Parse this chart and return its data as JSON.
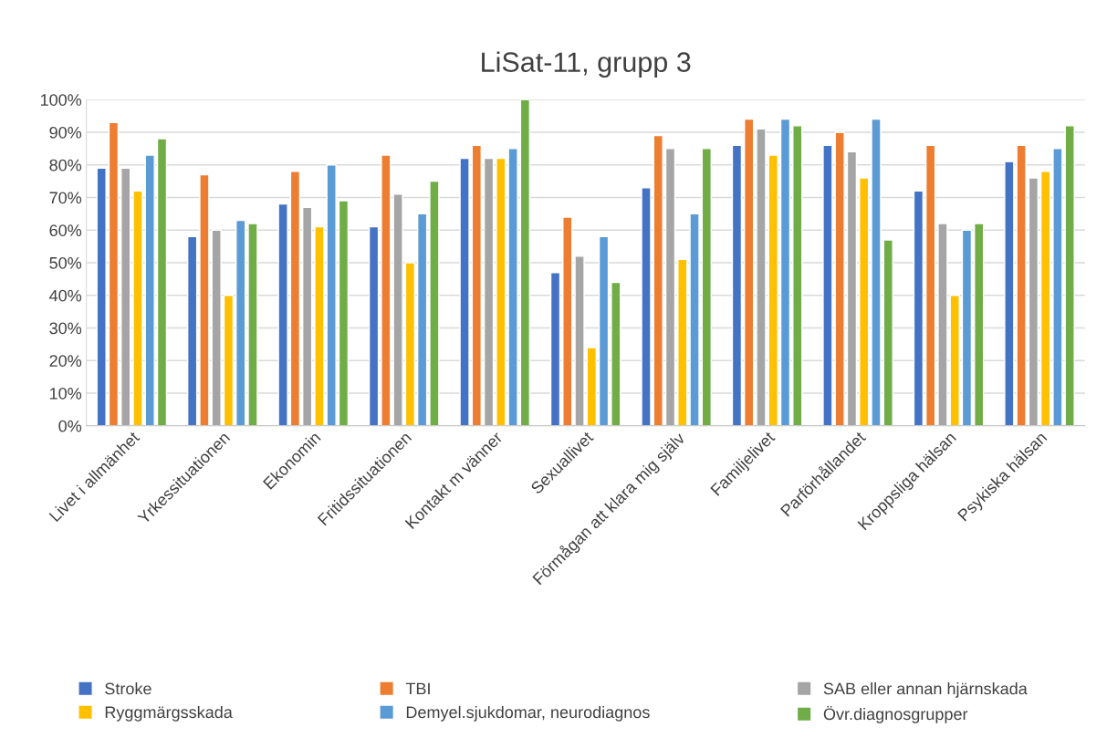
{
  "chart_data": {
    "type": "bar",
    "title": "LiSat-11, grupp 3",
    "categories": [
      "Livet i allmänhet",
      "Yrkessituationen",
      "Ekonomin",
      "Fritidssituationen",
      "Kontakt m vänner",
      "Sexuallivet",
      "Förmågan att klara mig själv",
      "Familjelivet",
      "Parförhållandet",
      "Kroppsliga hälsan",
      "Psykiska hälsan"
    ],
    "series": [
      {
        "name": "Stroke",
        "color": "#4472c4",
        "values": [
          79,
          58,
          68,
          61,
          82,
          47,
          73,
          86,
          86,
          72,
          81
        ]
      },
      {
        "name": "TBI",
        "color": "#ed7d31",
        "values": [
          93,
          77,
          78,
          83,
          86,
          64,
          89,
          94,
          90,
          86,
          86
        ]
      },
      {
        "name": "SAB eller annan hjärnskada",
        "color": "#a5a5a5",
        "values": [
          79,
          60,
          67,
          71,
          82,
          52,
          85,
          91,
          84,
          62,
          76
        ]
      },
      {
        "name": "Ryggmärgsskada",
        "color": "#ffc000",
        "values": [
          72,
          40,
          61,
          50,
          82,
          24,
          51,
          83,
          76,
          40,
          78
        ]
      },
      {
        "name": "Demyel.sjukdomar, neurodiagnos",
        "color": "#5b9bd5",
        "values": [
          83,
          63,
          80,
          65,
          85,
          58,
          65,
          94,
          94,
          60,
          85
        ]
      },
      {
        "name": "Övr.diagnosgrupper",
        "color": "#70ad47",
        "values": [
          88,
          62,
          69,
          75,
          100,
          44,
          85,
          92,
          57,
          62,
          92
        ]
      }
    ],
    "ylim": [
      0,
      100
    ],
    "yticks": [
      {
        "value": 0,
        "label": "0%"
      },
      {
        "value": 10,
        "label": "10%"
      },
      {
        "value": 20,
        "label": "20%"
      },
      {
        "value": 30,
        "label": "30%"
      },
      {
        "value": 40,
        "label": "40%"
      },
      {
        "value": 50,
        "label": "50%"
      },
      {
        "value": 60,
        "label": "60%"
      },
      {
        "value": 70,
        "label": "70%"
      },
      {
        "value": 80,
        "label": "80%"
      },
      {
        "value": 90,
        "label": "90%"
      },
      {
        "value": 100,
        "label": "100%"
      }
    ],
    "grid": "y",
    "legend": "bottom"
  }
}
